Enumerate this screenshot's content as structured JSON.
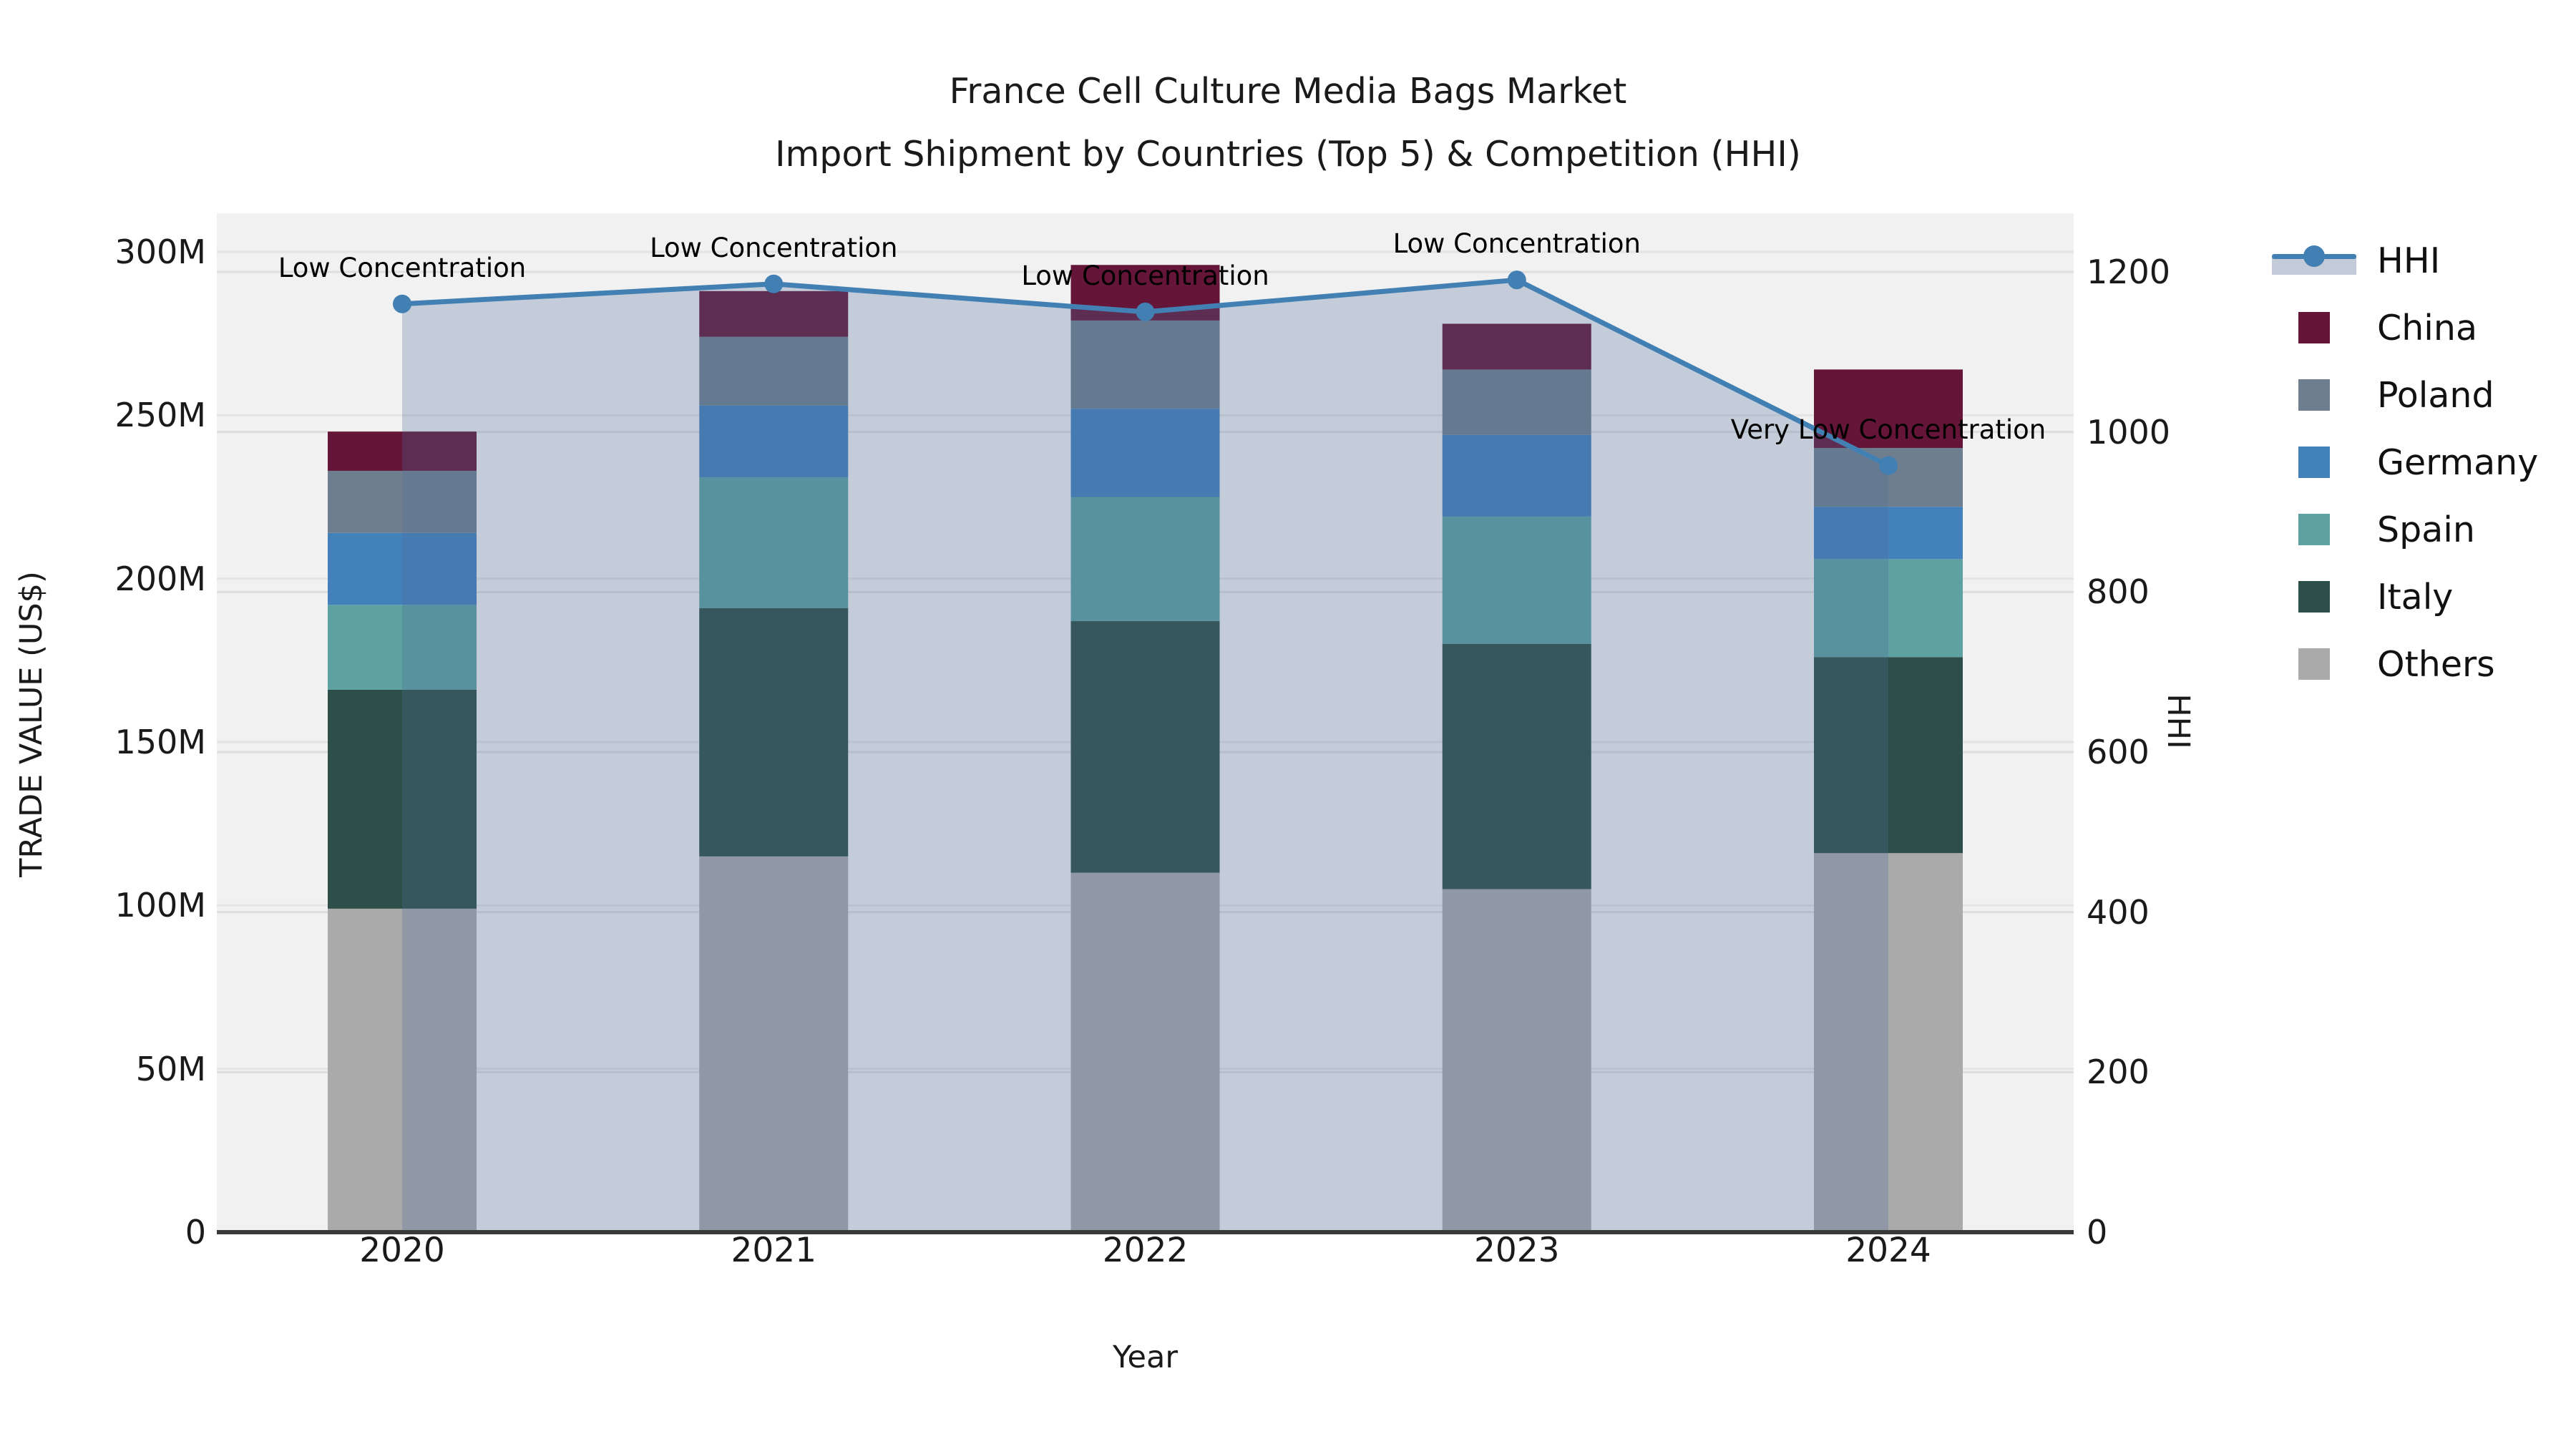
{
  "title": {
    "line1": "France Cell Culture Media Bags Market",
    "line2": "Import Shipment by Countries (Top 5) & Competition (HHI)"
  },
  "axes": {
    "y_left_label": "TRADE VALUE (US$)",
    "y_right_label": "HHI",
    "x_label": "Year",
    "y_left_ticks": [
      "0",
      "50M",
      "100M",
      "150M",
      "200M",
      "250M",
      "300M"
    ],
    "y_left_tick_values": [
      0,
      50,
      100,
      150,
      200,
      250,
      300
    ],
    "y_right_ticks": [
      "0",
      "200",
      "400",
      "600",
      "800",
      "1000",
      "1200"
    ],
    "y_right_tick_values": [
      0,
      200,
      400,
      600,
      800,
      1000,
      1200
    ]
  },
  "colors": {
    "plot_bg": "#f1f1f1",
    "grid_left": "#e4e4e4",
    "grid_right": "#dedede",
    "axis_line": "#3a3a3a",
    "hhi_line": "#4280b4",
    "hhi_area": "rgba(75,108,150,0.28)",
    "China": "#641538",
    "Poland": "#6f7e8e",
    "Germany": "#4381ba",
    "Spain": "#5da1a1",
    "Italy": "#2e4f49",
    "Others": "#aaaaaa"
  },
  "legend": {
    "items": [
      {
        "label": "HHI",
        "type": "line"
      },
      {
        "label": "China",
        "type": "swatch"
      },
      {
        "label": "Poland",
        "type": "swatch"
      },
      {
        "label": "Germany",
        "type": "swatch"
      },
      {
        "label": "Spain",
        "type": "swatch"
      },
      {
        "label": "Italy",
        "type": "swatch"
      },
      {
        "label": "Others",
        "type": "swatch"
      }
    ]
  },
  "annotations": [
    {
      "year": "2020",
      "text": "Low Concentration"
    },
    {
      "year": "2021",
      "text": "Low Concentration"
    },
    {
      "year": "2022",
      "text": "Low Concentration"
    },
    {
      "year": "2023",
      "text": "Low Concentration"
    },
    {
      "year": "2024",
      "text": "Very Low Concentration"
    }
  ],
  "chart_data": {
    "type": "bar",
    "subtype": "stacked-bars-with-line-overlay",
    "title": "France Cell Culture Media Bags Market — Import Shipment by Countries (Top 5) & Competition (HHI)",
    "xlabel": "Year",
    "ylabel_left": "TRADE VALUE (US$)",
    "ylabel_right": "HHI",
    "categories": [
      "2020",
      "2021",
      "2022",
      "2023",
      "2024"
    ],
    "ylim_left_millions": [
      0,
      300
    ],
    "ylim_right_hhi": [
      0,
      1200
    ],
    "grid": true,
    "legend_position": "right",
    "stack_order_bottom_to_top": [
      "Others",
      "Italy",
      "Spain",
      "Germany",
      "Poland",
      "China"
    ],
    "series": [
      {
        "name": "Others",
        "unit": "M US$",
        "values": [
          99,
          115,
          110,
          105,
          116
        ]
      },
      {
        "name": "Italy",
        "unit": "M US$",
        "values": [
          67,
          76,
          77,
          75,
          60
        ]
      },
      {
        "name": "Spain",
        "unit": "M US$",
        "values": [
          26,
          40,
          38,
          39,
          30
        ]
      },
      {
        "name": "Germany",
        "unit": "M US$",
        "values": [
          22,
          22,
          27,
          25,
          16
        ]
      },
      {
        "name": "Poland",
        "unit": "M US$",
        "values": [
          19,
          21,
          27,
          20,
          18
        ]
      },
      {
        "name": "China",
        "unit": "M US$",
        "values": [
          12,
          14,
          17,
          14,
          24
        ]
      }
    ],
    "totals_millions": [
      245,
      288,
      296,
      278,
      264
    ],
    "line_series": {
      "name": "HHI",
      "values": [
        1160,
        1185,
        1150,
        1190,
        958
      ],
      "style": "line+markers+area"
    }
  }
}
